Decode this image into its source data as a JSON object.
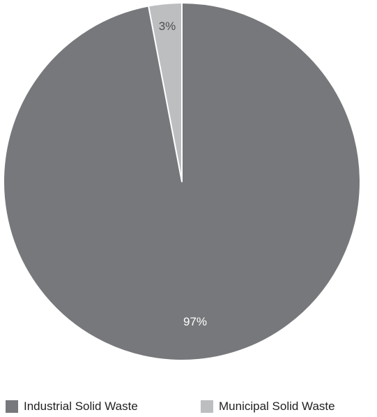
{
  "chart_data": {
    "type": "pie",
    "categories": [
      "Industrial Solid Waste",
      "Municipal Solid Waste"
    ],
    "values": [
      97,
      3
    ],
    "data_labels": [
      "97%",
      "3%"
    ],
    "colors": [
      "#77787b",
      "#bcbec0"
    ],
    "label_colors": [
      "#ffffff",
      "#4d4d4f"
    ],
    "start_angle_deg": 0,
    "direction": "counterclockwise",
    "legend_position": "bottom"
  },
  "legend": {
    "items": [
      {
        "label": "Industrial Solid Waste",
        "color": "#77787b"
      },
      {
        "label": "Municipal Solid Waste",
        "color": "#bcbec0"
      }
    ]
  }
}
